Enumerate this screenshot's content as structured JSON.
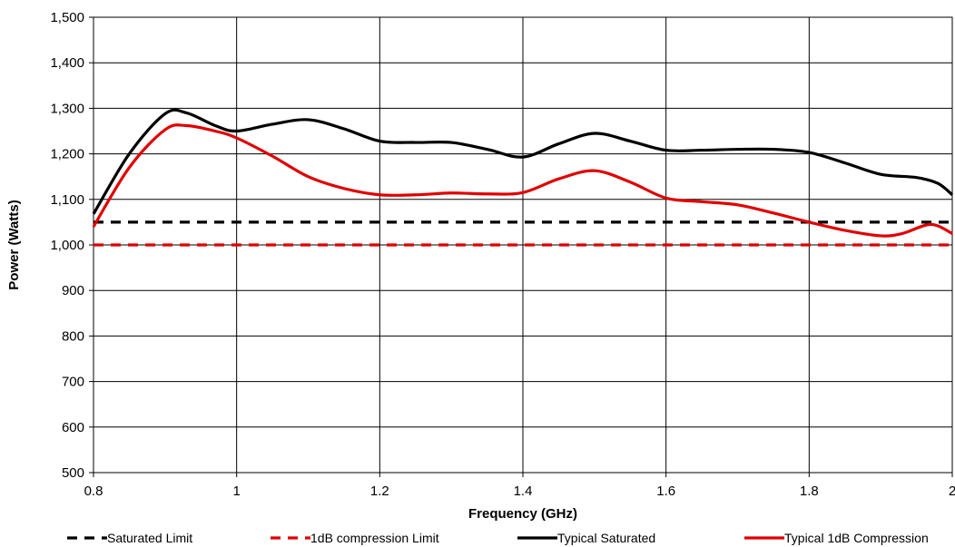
{
  "chart_data": {
    "type": "line",
    "title": "",
    "xlabel": "Frequency (GHz)",
    "ylabel": "Power (Watts)",
    "xlim": [
      0.8,
      2.0
    ],
    "ylim": [
      500,
      1500
    ],
    "xticks": [
      0.8,
      1.0,
      1.2,
      1.4,
      1.6,
      1.8,
      2.0
    ],
    "xtick_labels": [
      "0.8",
      "1",
      "1.2",
      "1.4",
      "1.6",
      "1.8",
      "2"
    ],
    "yticks": [
      500,
      600,
      700,
      800,
      900,
      1000,
      1100,
      1200,
      1300,
      1400,
      1500
    ],
    "ytick_labels": [
      "500",
      "600",
      "700",
      "800",
      "900",
      "1,000",
      "1,100",
      "1,200",
      "1,300",
      "1,400",
      "1,500"
    ],
    "grid": true,
    "legend_position": "bottom",
    "series": [
      {
        "name": "Saturated Limit",
        "color": "#000000",
        "dashed": true,
        "x": [
          0.8,
          2.0
        ],
        "y": [
          1050,
          1050
        ]
      },
      {
        "name": "1dB compression Limit",
        "color": "#e00000",
        "dashed": true,
        "x": [
          0.8,
          2.0
        ],
        "y": [
          1000,
          1000
        ]
      },
      {
        "name": "Typical Saturated",
        "color": "#000000",
        "dashed": false,
        "x": [
          0.8,
          0.85,
          0.9,
          0.93,
          0.97,
          1.0,
          1.05,
          1.1,
          1.15,
          1.2,
          1.25,
          1.3,
          1.35,
          1.4,
          1.45,
          1.5,
          1.55,
          1.6,
          1.65,
          1.7,
          1.75,
          1.8,
          1.85,
          1.9,
          1.95,
          1.98,
          2.0
        ],
        "y": [
          1068,
          1200,
          1288,
          1290,
          1262,
          1250,
          1265,
          1275,
          1255,
          1228,
          1225,
          1225,
          1210,
          1193,
          1222,
          1245,
          1228,
          1208,
          1208,
          1210,
          1210,
          1203,
          1180,
          1155,
          1148,
          1135,
          1110
        ]
      },
      {
        "name": "Typical 1dB Compression",
        "color": "#e00000",
        "dashed": false,
        "x": [
          0.8,
          0.85,
          0.9,
          0.93,
          0.97,
          1.0,
          1.05,
          1.1,
          1.15,
          1.2,
          1.25,
          1.3,
          1.35,
          1.4,
          1.45,
          1.5,
          1.55,
          1.6,
          1.65,
          1.7,
          1.75,
          1.8,
          1.85,
          1.9,
          1.93,
          1.97,
          2.0
        ],
        "y": [
          1040,
          1170,
          1253,
          1262,
          1250,
          1235,
          1195,
          1150,
          1124,
          1110,
          1110,
          1114,
          1112,
          1115,
          1145,
          1163,
          1138,
          1103,
          1095,
          1088,
          1070,
          1050,
          1032,
          1020,
          1025,
          1045,
          1025
        ]
      }
    ]
  }
}
